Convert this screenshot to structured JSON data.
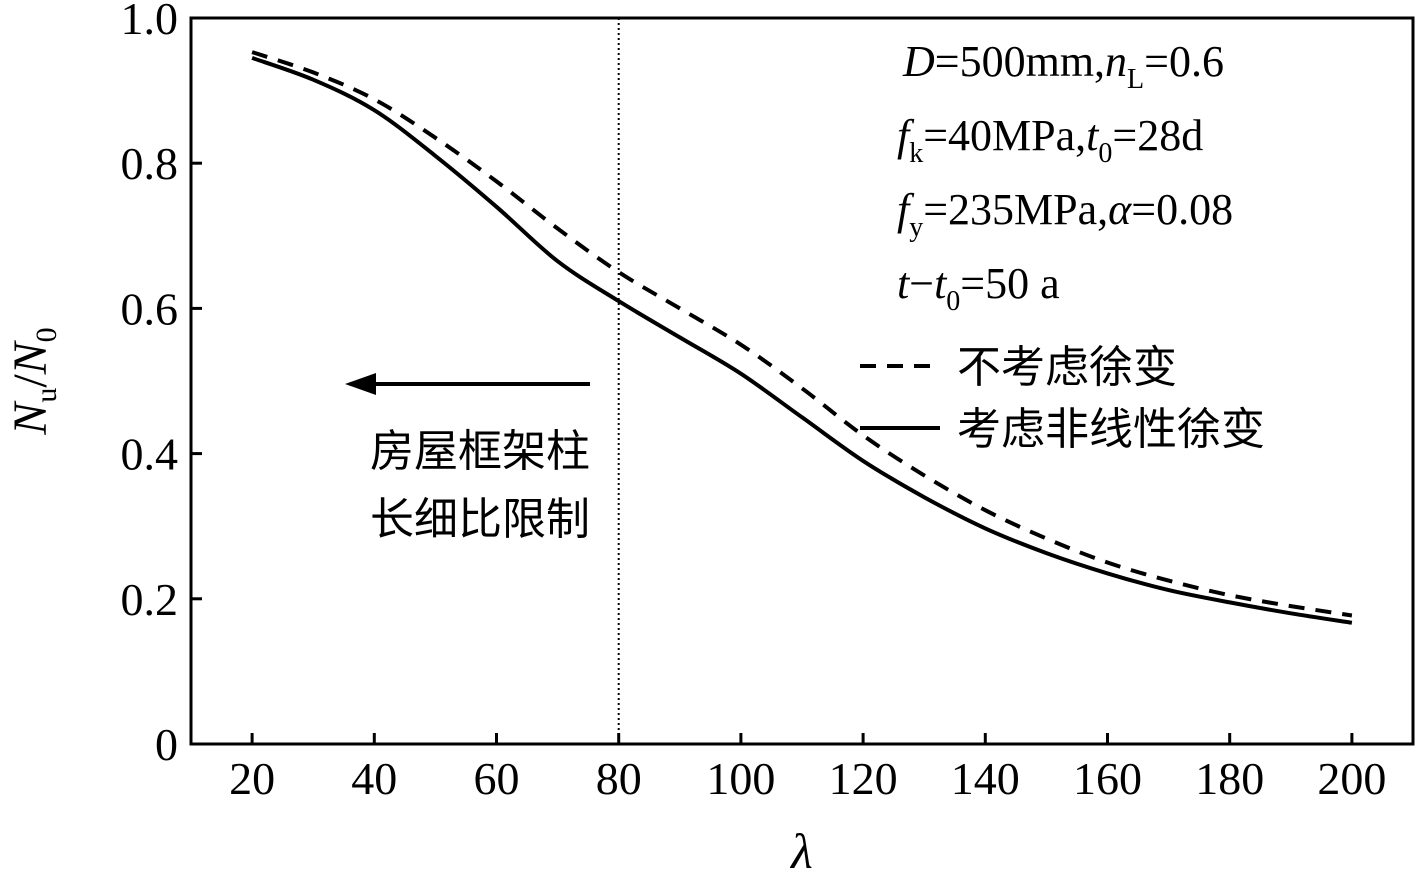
{
  "chart_data": {
    "type": "line",
    "xlabel": "λ",
    "ylabel": {
      "base": "N",
      "sub1": "u",
      "sep": "/",
      "base2": "N",
      "sub2": "0"
    },
    "xlim": [
      10,
      210
    ],
    "ylim": [
      0,
      1.0
    ],
    "x_ticks": [
      20,
      40,
      60,
      80,
      100,
      120,
      140,
      160,
      180,
      200
    ],
    "x_tick_labels": [
      "20",
      "40",
      "60",
      "80",
      "100",
      "120",
      "140",
      "160",
      "180",
      "200"
    ],
    "y_ticks": [
      0,
      0.2,
      0.4,
      0.6,
      0.8,
      1.0
    ],
    "y_tick_labels": [
      "0",
      "0.2",
      "0.4",
      "0.6",
      "0.8",
      "1.0"
    ],
    "grid": false,
    "legend_position": "right-middle",
    "reference_line": {
      "x": 80,
      "style": "dotted"
    },
    "limit_annotation": {
      "line1": "房屋框架柱",
      "line2": "长细比限制"
    },
    "params": {
      "line1": {
        "a": "D",
        "b": "=500mm,",
        "c": "n",
        "c_sub": "L",
        "d": "=0.6"
      },
      "line2": {
        "a": "f",
        "a_sub": "k",
        "b": "=40MPa,",
        "c": "t",
        "c_sub": "0",
        "d": "=28d"
      },
      "line3": {
        "a": "f",
        "a_sub": "y",
        "b": "=235MPa,",
        "c": "α",
        "d": "=0.08"
      },
      "line4": {
        "a": "t",
        "b": "−",
        "c": "t",
        "c_sub": "0",
        "d": "=50 a"
      }
    },
    "series": [
      {
        "name": "不考虑徐变",
        "style": "dashed",
        "x": [
          20,
          30,
          40,
          50,
          60,
          70,
          80,
          90,
          100,
          110,
          120,
          130,
          140,
          150,
          160,
          170,
          180,
          190,
          200
        ],
        "y": [
          0.953,
          0.925,
          0.888,
          0.835,
          0.775,
          0.71,
          0.65,
          0.6,
          0.55,
          0.49,
          0.425,
          0.37,
          0.322,
          0.283,
          0.25,
          0.225,
          0.205,
          0.19,
          0.177
        ]
      },
      {
        "name": "考虑非线性徐变",
        "style": "solid",
        "x": [
          20,
          30,
          40,
          50,
          60,
          70,
          80,
          90,
          100,
          110,
          120,
          130,
          140,
          150,
          160,
          170,
          180,
          190,
          200
        ],
        "y": [
          0.945,
          0.915,
          0.873,
          0.81,
          0.74,
          0.665,
          0.61,
          0.56,
          0.51,
          0.45,
          0.39,
          0.34,
          0.297,
          0.263,
          0.235,
          0.212,
          0.195,
          0.18,
          0.167
        ]
      }
    ]
  }
}
